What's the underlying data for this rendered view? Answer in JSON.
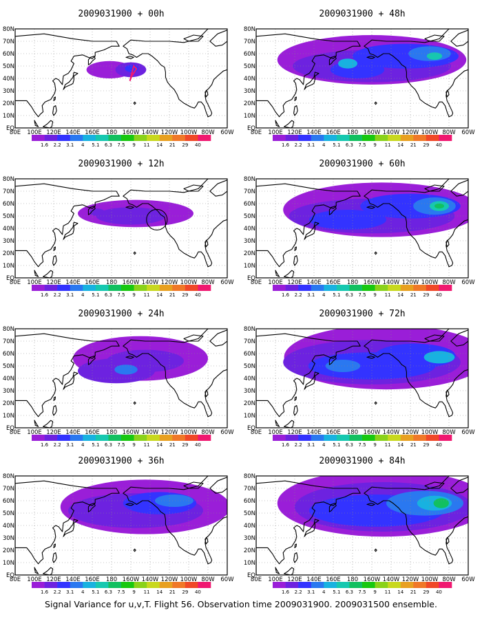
{
  "figure": {
    "caption": "Signal Variance for u,v,T. Flight 56. Observation time 2009031900. 2009031500 ensemble."
  },
  "map": {
    "lon_labels": [
      "80E",
      "100E",
      "120E",
      "140E",
      "160E",
      "180",
      "160W",
      "140W",
      "120W",
      "100W",
      "80W",
      "60W"
    ],
    "lat_labels": [
      "EQ",
      "10N",
      "20N",
      "30N",
      "40N",
      "50N",
      "60N",
      "70N",
      "80N"
    ]
  },
  "colorbar": {
    "levels": [
      "1.6",
      "2.2",
      "3.1",
      "4",
      "5.1",
      "6.3",
      "7.5",
      "9",
      "11",
      "14",
      "21",
      "29",
      "40"
    ],
    "colors": [
      "#9a1ed8",
      "#6d22e0",
      "#3333ff",
      "#2a78f0",
      "#18b2e0",
      "#16c8b0",
      "#12c060",
      "#18c810",
      "#8ad21a",
      "#c8d81e",
      "#e8a020",
      "#f07828",
      "#f04828",
      "#f01870"
    ]
  },
  "panels": [
    {
      "title": "2009031900 + 00h",
      "forecast_hour": 0
    },
    {
      "title": "2009031900 + 48h",
      "forecast_hour": 48
    },
    {
      "title": "2009031900 + 12h",
      "forecast_hour": 12
    },
    {
      "title": "2009031900 + 60h",
      "forecast_hour": 60
    },
    {
      "title": "2009031900 + 24h",
      "forecast_hour": 24
    },
    {
      "title": "2009031900 + 72h",
      "forecast_hour": 72
    },
    {
      "title": "2009031900 + 36h",
      "forecast_hour": 36
    },
    {
      "title": "2009031900 + 84h",
      "forecast_hour": 84
    }
  ]
}
